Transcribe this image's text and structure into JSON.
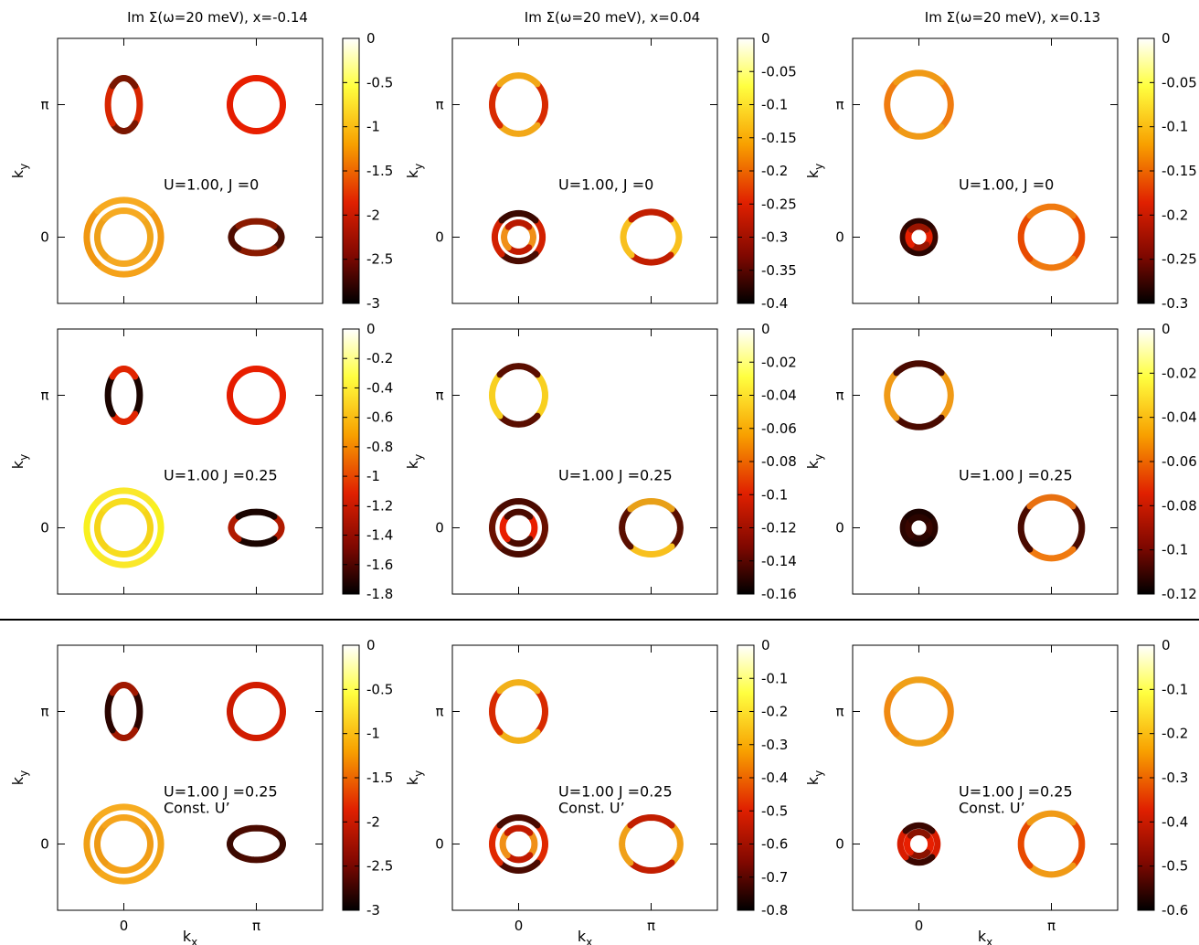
{
  "figure": {
    "divider": true
  },
  "chart_data": [
    {
      "type": "heatmap",
      "title": "Im Σ(ω=20 meV), x=-0.14",
      "annotation": [
        "U=1.00, J =0"
      ],
      "ylabel": "k_y",
      "xlabel": "",
      "xticks": [
        "0",
        "π"
      ],
      "yticks": [
        "0",
        "π"
      ],
      "colorbar": {
        "range": [
          -3,
          0
        ],
        "ticks": [
          0,
          -0.5,
          -1,
          -1.5,
          -2,
          -2.5,
          -3
        ]
      },
      "pockets": [
        {
          "name": "Γ outer",
          "k_center": [
            "0",
            "0"
          ],
          "colors": [
            "#f29a14",
            "#f5a21a",
            "#f0960f",
            "#f7aa20"
          ]
        },
        {
          "name": "Γ inner",
          "k_center": [
            "0",
            "0"
          ],
          "colors": [
            "#f0a51a",
            "#f5a821",
            "#eea018",
            "#f6aa22"
          ]
        },
        {
          "name": "X",
          "k_center": [
            "π",
            "0"
          ],
          "colors": [
            "#4a0c00",
            "#8a1a00",
            "#4f0c00",
            "#8a1a00"
          ]
        },
        {
          "name": "Y",
          "k_center": [
            "0",
            "π"
          ],
          "colors": [
            "#d82600",
            "#7a1600",
            "#d82600",
            "#7a1600"
          ]
        },
        {
          "name": "M",
          "k_center": [
            "π",
            "π"
          ],
          "colors": [
            "#e81f00",
            "#e81f00",
            "#e51c00",
            "#e81f00"
          ]
        }
      ]
    },
    {
      "type": "heatmap",
      "title": "Im Σ(ω=20 meV), x=0.04",
      "annotation": [
        "U=1.00, J =0"
      ],
      "ylabel": "k_y",
      "xlabel": "",
      "xticks": [
        "0",
        "π"
      ],
      "yticks": [
        "0",
        "π"
      ],
      "colorbar": {
        "range": [
          -0.4,
          0
        ],
        "ticks": [
          0,
          -0.05,
          -0.1,
          -0.15,
          -0.2,
          -0.25,
          -0.3,
          -0.35,
          -0.4
        ]
      },
      "pockets": [
        {
          "name": "Γ outer",
          "k_center": [
            "0",
            "0"
          ],
          "colors": [
            "#d22000",
            "#4a0a00",
            "#d22000",
            "#3a0800"
          ]
        },
        {
          "name": "Γ inner",
          "k_center": [
            "0",
            "0"
          ],
          "colors": [
            "#f09018",
            "#c21a00",
            "#f09018",
            "#b81800"
          ]
        },
        {
          "name": "X",
          "k_center": [
            "π",
            "0"
          ],
          "colors": [
            "#f8c01e",
            "#c21e00",
            "#f8c01e",
            "#c21e00"
          ]
        },
        {
          "name": "Y",
          "k_center": [
            "0",
            "π"
          ],
          "colors": [
            "#d82a00",
            "#f2a818",
            "#d82a00",
            "#f2a818"
          ]
        }
      ]
    },
    {
      "type": "heatmap",
      "title": "Im Σ(ω=20 meV), x=0.13",
      "annotation": [
        "U=1.00, J =0"
      ],
      "ylabel": "k_y",
      "xlabel": "",
      "xticks": [
        "0",
        "π"
      ],
      "yticks": [
        "0",
        "π"
      ],
      "colorbar": {
        "range": [
          -0.3,
          0
        ],
        "ticks": [
          0,
          -0.05,
          -0.1,
          -0.15,
          -0.2,
          -0.25,
          -0.3
        ]
      },
      "pockets": [
        {
          "name": "Γ outer",
          "k_center": [
            "0",
            "0"
          ],
          "colors": [
            "#3a0600",
            "#2a0400",
            "#3a0600",
            "#2a0400"
          ]
        },
        {
          "name": "Γ inner",
          "k_center": [
            "0",
            "0"
          ],
          "colors": [
            "#e81f00",
            "#9a1400",
            "#e81f00",
            "#9a1400"
          ]
        },
        {
          "name": "X",
          "k_center": [
            "π",
            "0"
          ],
          "colors": [
            "#e84a00",
            "#f07a10",
            "#e84a00",
            "#f07a10"
          ]
        },
        {
          "name": "Y",
          "k_center": [
            "0",
            "π"
          ],
          "colors": [
            "#f07c10",
            "#f09a16",
            "#f07c10",
            "#f09a16"
          ]
        }
      ]
    },
    {
      "type": "heatmap",
      "title": "",
      "annotation": [
        "U=1.00 J =0.25"
      ],
      "ylabel": "k_y",
      "xlabel": "",
      "xticks": [
        "0",
        "π"
      ],
      "yticks": [
        "0",
        "π"
      ],
      "colorbar": {
        "range": [
          -1.8,
          0
        ],
        "ticks": [
          0,
          -0.2,
          -0.4,
          -0.6,
          -0.8,
          -1,
          -1.2,
          -1.4,
          -1.6,
          -1.8
        ]
      },
      "pockets": [
        {
          "name": "Γ outer",
          "k_center": [
            "0",
            "0"
          ],
          "colors": [
            "#f8f020",
            "#fae82a",
            "#f8f020",
            "#fae82a"
          ]
        },
        {
          "name": "Γ inner",
          "k_center": [
            "0",
            "0"
          ],
          "colors": [
            "#f5d418",
            "#f7dc1e",
            "#f5d418",
            "#f7dc1e"
          ]
        },
        {
          "name": "X",
          "k_center": [
            "π",
            "0"
          ],
          "colors": [
            "#b01a00",
            "#1a0400",
            "#b01a00",
            "#1a0400"
          ]
        },
        {
          "name": "Y",
          "k_center": [
            "0",
            "π"
          ],
          "colors": [
            "#1a0400",
            "#e02400",
            "#1a0400",
            "#e02400"
          ]
        },
        {
          "name": "M",
          "k_center": [
            "π",
            "π"
          ],
          "colors": [
            "#e81f00",
            "#e81f00",
            "#e51c00",
            "#e81f00"
          ]
        }
      ]
    },
    {
      "type": "heatmap",
      "title": "",
      "annotation": [
        "U=1.00 J =0.25"
      ],
      "ylabel": "k_y",
      "xlabel": "",
      "xticks": [
        "0",
        "π"
      ],
      "yticks": [
        "0",
        "π"
      ],
      "colorbar": {
        "range": [
          -0.16,
          0
        ],
        "ticks": [
          0,
          -0.02,
          -0.04,
          -0.06,
          -0.08,
          -0.1,
          -0.12,
          -0.14,
          -0.16
        ]
      },
      "pockets": [
        {
          "name": "Γ outer",
          "k_center": [
            "0",
            "0"
          ],
          "colors": [
            "#6a1000",
            "#4a0a00",
            "#6a1000",
            "#4a0a00"
          ]
        },
        {
          "name": "Γ inner",
          "k_center": [
            "0",
            "0"
          ],
          "colors": [
            "#e81f00",
            "#4a0a00",
            "#e81f00",
            "#4a0a00"
          ]
        },
        {
          "name": "X",
          "k_center": [
            "π",
            "0"
          ],
          "colors": [
            "#5a0e00",
            "#f8c01e",
            "#5a0e00",
            "#e8a018"
          ]
        },
        {
          "name": "Y",
          "k_center": [
            "0",
            "π"
          ],
          "colors": [
            "#f8d020",
            "#5a0e00",
            "#f8d020",
            "#5a0e00"
          ]
        }
      ]
    },
    {
      "type": "heatmap",
      "title": "",
      "annotation": [
        "U=1.00 J =0.25"
      ],
      "ylabel": "k_y",
      "xlabel": "",
      "xticks": [
        "0",
        "π"
      ],
      "yticks": [
        "0",
        "π"
      ],
      "colorbar": {
        "range": [
          -0.12,
          0
        ],
        "ticks": [
          0,
          -0.02,
          -0.04,
          -0.06,
          -0.08,
          -0.1,
          -0.12
        ]
      },
      "pockets": [
        {
          "name": "Γ outer",
          "k_center": [
            "0",
            "0"
          ],
          "colors": [
            "#2a0400",
            "#1a0200",
            "#2a0400",
            "#1a0200"
          ]
        },
        {
          "name": "Γ inner",
          "k_center": [
            "0",
            "0"
          ],
          "colors": [
            "#3a0600",
            "#2a0400",
            "#3a0600",
            "#2a0400"
          ]
        },
        {
          "name": "X",
          "k_center": [
            "π",
            "0"
          ],
          "colors": [
            "#4a0a00",
            "#f07a10",
            "#4a0a00",
            "#e87010"
          ]
        },
        {
          "name": "Y",
          "k_center": [
            "0",
            "π"
          ],
          "colors": [
            "#f09a16",
            "#4a0a00",
            "#f09a16",
            "#4a0a00"
          ]
        }
      ]
    },
    {
      "type": "heatmap",
      "title": "",
      "annotation": [
        "U=1.00 J =0.25",
        "Const. U’"
      ],
      "ylabel": "k_y",
      "xlabel": "k_x",
      "xticks": [
        "0",
        "π"
      ],
      "yticks": [
        "0",
        "π"
      ],
      "colorbar": {
        "range": [
          -3,
          0
        ],
        "ticks": [
          0,
          -0.5,
          -1,
          -1.5,
          -2,
          -2.5,
          -3
        ]
      },
      "pockets": [
        {
          "name": "Γ outer",
          "k_center": [
            "0",
            "0"
          ],
          "colors": [
            "#f2a418",
            "#f5a81c",
            "#f0a016",
            "#f7ac20"
          ]
        },
        {
          "name": "Γ inner",
          "k_center": [
            "0",
            "0"
          ],
          "colors": [
            "#f09c16",
            "#f4a21a",
            "#ee9a14",
            "#f5a41c"
          ]
        },
        {
          "name": "X",
          "k_center": [
            "π",
            "0"
          ],
          "colors": [
            "#3a0800",
            "#4a0a00",
            "#3a0800",
            "#4a0a00"
          ]
        },
        {
          "name": "Y",
          "k_center": [
            "0",
            "π"
          ],
          "colors": [
            "#2a0400",
            "#a01800",
            "#2a0400",
            "#a01800"
          ]
        },
        {
          "name": "M",
          "k_center": [
            "π",
            "π"
          ],
          "colors": [
            "#d21c00",
            "#d21c00",
            "#cc1a00",
            "#d21c00"
          ]
        }
      ]
    },
    {
      "type": "heatmap",
      "title": "",
      "annotation": [
        "U=1.00 J =0.25",
        "Const. U’"
      ],
      "ylabel": "k_y",
      "xlabel": "k_x",
      "xticks": [
        "0",
        "π"
      ],
      "yticks": [
        "0",
        "π"
      ],
      "colorbar": {
        "range": [
          -0.8,
          0
        ],
        "ticks": [
          0,
          -0.1,
          -0.2,
          -0.3,
          -0.4,
          -0.5,
          -0.6,
          -0.7,
          -0.8
        ]
      },
      "pockets": [
        {
          "name": "Γ outer",
          "k_center": [
            "0",
            "0"
          ],
          "colors": [
            "#e02800",
            "#4a0a00",
            "#e02800",
            "#4a0a00"
          ]
        },
        {
          "name": "Γ inner",
          "k_center": [
            "0",
            "0"
          ],
          "colors": [
            "#f09018",
            "#c21a00",
            "#f09018",
            "#c21a00"
          ]
        },
        {
          "name": "X",
          "k_center": [
            "π",
            "0"
          ],
          "colors": [
            "#f0a018",
            "#c21e00",
            "#f0a018",
            "#c21e00"
          ]
        },
        {
          "name": "Y",
          "k_center": [
            "0",
            "π"
          ],
          "colors": [
            "#d82a00",
            "#f2b018",
            "#d82a00",
            "#f2b018"
          ]
        }
      ]
    },
    {
      "type": "heatmap",
      "title": "",
      "annotation": [
        "U=1.00 J =0.25",
        "Const. U’"
      ],
      "ylabel": "k_y",
      "xlabel": "k_x",
      "xticks": [
        "0",
        "π"
      ],
      "yticks": [
        "0",
        "π"
      ],
      "colorbar": {
        "range": [
          -0.6,
          0
        ],
        "ticks": [
          0,
          -0.1,
          -0.2,
          -0.3,
          -0.4,
          -0.5,
          -0.6
        ]
      },
      "pockets": [
        {
          "name": "Γ outer",
          "k_center": [
            "0",
            "0"
          ],
          "colors": [
            "#d81c00",
            "#3a0600",
            "#d81c00",
            "#3a0600"
          ]
        },
        {
          "name": "Γ inner",
          "k_center": [
            "0",
            "0"
          ],
          "colors": [
            "#e81f00",
            "#8a1200",
            "#e81f00",
            "#8a1200"
          ]
        },
        {
          "name": "X",
          "k_center": [
            "π",
            "0"
          ],
          "colors": [
            "#e84a00",
            "#f09a16",
            "#e84a00",
            "#f09a16"
          ]
        },
        {
          "name": "Y",
          "k_center": [
            "0",
            "π"
          ],
          "colors": [
            "#f08a12",
            "#f0a018",
            "#f08a12",
            "#f0a018"
          ]
        }
      ]
    }
  ]
}
